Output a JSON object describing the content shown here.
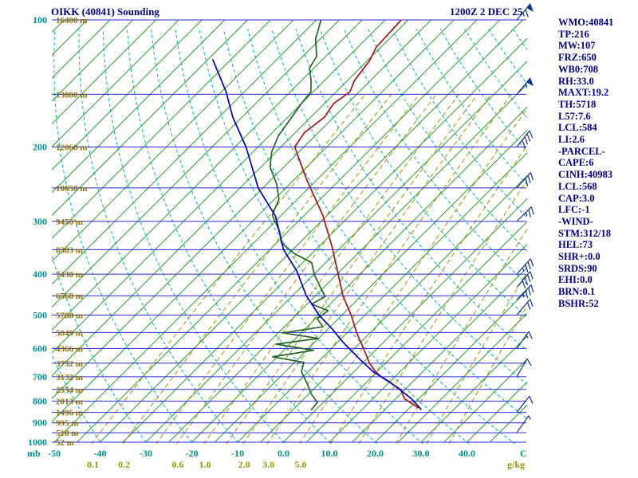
{
  "header": {
    "title": "OIKK (40841) Sounding",
    "timestamp": "1200Z  2 DEC 25"
  },
  "stats_panel": {
    "lines": [
      "WMO:40841",
      "TP:216",
      "MW:107",
      "FRZ:650",
      "WB0:708",
      "RH:33.0",
      "MAXT:19.2",
      "TH:5718",
      "L57:7.6",
      "LCL:584",
      "LI:2.6",
      "-PARCEL-",
      "CAPE:6",
      "CINH:40983",
      "LCL:568",
      "CAP:3.0",
      "LFC:-1",
      "-WIND-",
      "STM:312/18",
      "HEL:73",
      "SHR+:0.0",
      "SRDS:90",
      "EHI:0.0",
      "BRN:0.1",
      "BSHR:52"
    ]
  },
  "axes": {
    "pressure_unit": "mb",
    "pressure_ticks": [
      100,
      200,
      300,
      400,
      500,
      600,
      700,
      800,
      900,
      1000
    ],
    "temp_unit": "C",
    "temp_ticks": [
      {
        "label": "-50",
        "value": -50
      },
      {
        "label": "-40",
        "value": -40
      },
      {
        "label": "-30",
        "value": -30
      },
      {
        "label": "-20",
        "value": -20
      },
      {
        "label": "-10",
        "value": -10
      },
      {
        "label": "0.0",
        "value": 0
      },
      {
        "label": "10.0",
        "value": 10
      },
      {
        "label": "20.0",
        "value": 20
      },
      {
        "label": "30.0",
        "value": 30
      },
      {
        "label": "40.0",
        "value": 40
      }
    ],
    "mixing_unit": "g/kg",
    "mixing_ratio_labels": [
      {
        "label": "0.1",
        "value": 0.1
      },
      {
        "label": "0.2",
        "value": 0.2
      },
      {
        "label": "0.6",
        "value": 0.6
      },
      {
        "label": "1.0",
        "value": 1
      },
      {
        "label": "2.0",
        "value": 2
      },
      {
        "label": "3.0",
        "value": 3
      },
      {
        "label": "5.0",
        "value": 5
      }
    ],
    "altitude_labels": [
      {
        "pressure": 100,
        "label": "16400 m"
      },
      {
        "pressure": 150,
        "label": "13880 m"
      },
      {
        "pressure": 200,
        "label": "12060 m"
      },
      {
        "pressure": 250,
        "label": "10650 m"
      },
      {
        "pressure": 300,
        "label": "9450 m"
      },
      {
        "pressure": 350,
        "label": "8383 m"
      },
      {
        "pressure": 400,
        "label": "7430 m"
      },
      {
        "pressure": 450,
        "label": "6568 m"
      },
      {
        "pressure": 500,
        "label": "5780 m"
      },
      {
        "pressure": 550,
        "label": "5049 m"
      },
      {
        "pressure": 600,
        "label": "4366 m"
      },
      {
        "pressure": 650,
        "label": "3732 m"
      },
      {
        "pressure": 700,
        "label": "3132 m"
      },
      {
        "pressure": 750,
        "label": "2554 m"
      },
      {
        "pressure": 800,
        "label": "2013 m"
      },
      {
        "pressure": 850,
        "label": "1496 m"
      },
      {
        "pressure": 900,
        "label": "995 m"
      },
      {
        "pressure": 950,
        "label": "518 m"
      },
      {
        "pressure": 1000,
        "label": "52 m"
      }
    ]
  },
  "chart_data": {
    "type": "line",
    "title": "OIKK (40841) Sounding skew-T log-p diagram",
    "x_axis": {
      "label": "C",
      "min": -50,
      "max": 45,
      "skew_deg": 45
    },
    "y_axis": {
      "label": "mb",
      "scale": "log",
      "min": 100,
      "max": 1000
    },
    "isobars_mb": [
      100,
      150,
      200,
      250,
      300,
      350,
      400,
      450,
      500,
      550,
      600,
      650,
      700,
      750,
      800,
      850,
      900,
      950,
      1000
    ],
    "isotherm_step_c": 5,
    "dry_adiabats_theta_c": {
      "min": -40,
      "max": 170,
      "step": 10
    },
    "mixing_ratio_lines_g_kg": [
      0.1,
      0.2,
      0.4,
      0.6,
      1.0,
      1.5,
      2.0,
      3.0,
      5.0,
      8.0,
      12.0,
      20.0,
      30.0,
      40.0
    ],
    "series": [
      {
        "name": "temperature",
        "color": "#aa1414",
        "points": [
          [
            830,
            22
          ],
          [
            790,
            17
          ],
          [
            750,
            14
          ],
          [
            700,
            7
          ],
          [
            680,
            4.6
          ],
          [
            650,
            1.5
          ],
          [
            600,
            -3
          ],
          [
            550,
            -8
          ],
          [
            500,
            -13
          ],
          [
            450,
            -19
          ],
          [
            390,
            -26
          ],
          [
            345,
            -32
          ],
          [
            290,
            -41
          ],
          [
            240,
            -52
          ],
          [
            200,
            -62
          ],
          [
            185,
            -63
          ],
          [
            170,
            -62
          ],
          [
            158,
            -63
          ],
          [
            148,
            -62
          ],
          [
            139,
            -63.5
          ],
          [
            125,
            -64.5
          ],
          [
            116,
            -66
          ],
          [
            100,
            -66.5
          ]
        ]
      },
      {
        "name": "dewpoint",
        "color": "#256325",
        "points": [
          [
            840,
            -1
          ],
          [
            805,
            -1.3
          ],
          [
            770,
            -4.4
          ],
          [
            722,
            -8
          ],
          [
            682,
            -11.4
          ],
          [
            647,
            -13
          ],
          [
            628,
            -21
          ],
          [
            606,
            -13.5
          ],
          [
            586,
            -23
          ],
          [
            568,
            -15
          ],
          [
            551,
            -24
          ],
          [
            533,
            -16.6
          ],
          [
            510,
            -19.6
          ],
          [
            488,
            -19
          ],
          [
            471,
            -24
          ],
          [
            452,
            -22.7
          ],
          [
            428,
            -26
          ],
          [
            400,
            -30
          ],
          [
            376,
            -33
          ],
          [
            357,
            -39
          ],
          [
            337,
            -44
          ],
          [
            316,
            -47
          ],
          [
            290,
            -52
          ],
          [
            266,
            -54
          ],
          [
            244,
            -58
          ],
          [
            223,
            -63
          ],
          [
            205,
            -66
          ],
          [
            188,
            -68
          ],
          [
            172,
            -69
          ],
          [
            158,
            -70
          ],
          [
            148,
            -70.5
          ],
          [
            139,
            -73
          ],
          [
            130,
            -76
          ],
          [
            122,
            -77
          ],
          [
            111,
            -81
          ],
          [
            100,
            -84
          ]
        ]
      },
      {
        "name": "parcel",
        "color": "#0000bb",
        "points": [
          [
            838,
            23
          ],
          [
            790,
            18.5
          ],
          [
            760,
            15
          ],
          [
            720,
            10
          ],
          [
            682,
            4.3
          ],
          [
            640,
            -1
          ],
          [
            581,
            -8.7
          ],
          [
            540,
            -14
          ],
          [
            500,
            -20
          ],
          [
            450,
            -27
          ],
          [
            393,
            -34.5
          ],
          [
            350,
            -42
          ],
          [
            292,
            -51
          ],
          [
            250,
            -61
          ],
          [
            200,
            -72.6
          ],
          [
            170,
            -82
          ],
          [
            148,
            -89
          ],
          [
            124,
            -99
          ]
        ]
      }
    ],
    "wind_barbs": [
      {
        "pressure": 100,
        "speed_kt": 65,
        "dir_deg": 40
      },
      {
        "pressure": 150,
        "speed_kt": 55,
        "dir_deg": 40
      },
      {
        "pressure": 200,
        "speed_kt": 40,
        "dir_deg": 38
      },
      {
        "pressure": 250,
        "speed_kt": 30,
        "dir_deg": 42
      },
      {
        "pressure": 300,
        "speed_kt": 25,
        "dir_deg": 45
      },
      {
        "pressure": 400,
        "speed_kt": 35,
        "dir_deg": 42
      },
      {
        "pressure": 430,
        "speed_kt": 40,
        "dir_deg": 40
      },
      {
        "pressure": 460,
        "speed_kt": 35,
        "dir_deg": 44
      },
      {
        "pressure": 500,
        "speed_kt": 20,
        "dir_deg": 40
      },
      {
        "pressure": 600,
        "speed_kt": 15,
        "dir_deg": 35
      },
      {
        "pressure": 700,
        "speed_kt": 10,
        "dir_deg": 30
      },
      {
        "pressure": 850,
        "speed_kt": 10,
        "dir_deg": 38
      },
      {
        "pressure": 950,
        "speed_kt": 5,
        "dir_deg": 35
      }
    ]
  },
  "colors": {
    "background": "#ffffff",
    "text_navy": "#000080",
    "tick_teal": "#008b8b",
    "altitude_olive": "#8a7000",
    "isobar": "#2a2ad0",
    "isotherm": "#2e9e2e",
    "dry_adiabat": "#00b2b2",
    "mixing_ratio": "#979700",
    "temperature_curve": "#aa1414",
    "dewpoint_curve": "#256325",
    "parcel_curve": "#0000bb",
    "wind_barb": "#103090"
  }
}
